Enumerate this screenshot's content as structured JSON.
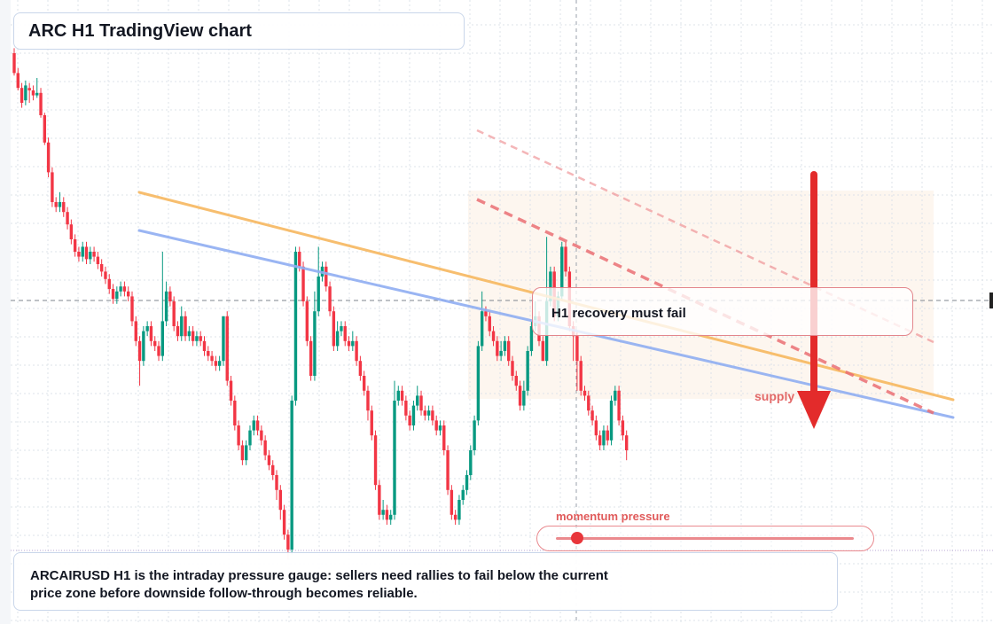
{
  "header": {
    "title": "ARC H1 TradingView chart"
  },
  "callout": {
    "text": "H1 recovery must fail"
  },
  "supply_label": "supply",
  "momentum": {
    "label": "momentum pressure",
    "level": 0.07
  },
  "note": {
    "text": "ARCAIRUSD H1 is the intraday pressure gauge: sellers need rallies to fail below the current price zone before downside follow-through becomes reliable."
  },
  "colors": {
    "up": "#089981",
    "down": "#f23645",
    "ma_fast": "#f7b860",
    "ma_slow": "#90aef2",
    "trend": "#eb6f74",
    "arrow": "#e32b2b",
    "zone": "#fdf4ec",
    "grid": "#dde3ea"
  },
  "chart_data": {
    "type": "candlestick",
    "title": "ARC H1 TradingView chart",
    "timeframe": "H1",
    "grid": true,
    "candles": [
      [
        1.0,
        0.96,
        1.01,
        0.955
      ],
      [
        0.96,
        0.93,
        0.97,
        0.925
      ],
      [
        0.93,
        0.9,
        0.94,
        0.89
      ],
      [
        0.905,
        0.935,
        0.945,
        0.895
      ],
      [
        0.93,
        0.925,
        0.94,
        0.9
      ],
      [
        0.925,
        0.915,
        0.935,
        0.905
      ],
      [
        0.915,
        0.92,
        0.95,
        0.91
      ],
      [
        0.92,
        0.875,
        0.93,
        0.87
      ],
      [
        0.875,
        0.82,
        0.88,
        0.815
      ],
      [
        0.82,
        0.76,
        0.83,
        0.75
      ],
      [
        0.76,
        0.7,
        0.77,
        0.69
      ],
      [
        0.7,
        0.69,
        0.71,
        0.68
      ],
      [
        0.69,
        0.7,
        0.72,
        0.68
      ],
      [
        0.7,
        0.68,
        0.71,
        0.67
      ],
      [
        0.68,
        0.655,
        0.69,
        0.645
      ],
      [
        0.655,
        0.625,
        0.665,
        0.615
      ],
      [
        0.625,
        0.6,
        0.635,
        0.59
      ],
      [
        0.6,
        0.59,
        0.61,
        0.58
      ],
      [
        0.59,
        0.61,
        0.62,
        0.58
      ],
      [
        0.61,
        0.585,
        0.62,
        0.575
      ],
      [
        0.585,
        0.6,
        0.61,
        0.575
      ],
      [
        0.6,
        0.59,
        0.61,
        0.58
      ],
      [
        0.59,
        0.575,
        0.6,
        0.565
      ],
      [
        0.575,
        0.56,
        0.585,
        0.55
      ],
      [
        0.56,
        0.545,
        0.57,
        0.535
      ],
      [
        0.545,
        0.525,
        0.555,
        0.515
      ],
      [
        0.525,
        0.505,
        0.535,
        0.495
      ],
      [
        0.505,
        0.52,
        0.53,
        0.495
      ],
      [
        0.52,
        0.53,
        0.54,
        0.51
      ],
      [
        0.53,
        0.52,
        0.54,
        0.51
      ],
      [
        0.52,
        0.51,
        0.53,
        0.5
      ],
      [
        0.51,
        0.46,
        0.52,
        0.45
      ],
      [
        0.46,
        0.42,
        0.47,
        0.41
      ],
      [
        0.42,
        0.38,
        0.43,
        0.33
      ],
      [
        0.38,
        0.44,
        0.45,
        0.37
      ],
      [
        0.44,
        0.45,
        0.46,
        0.43
      ],
      [
        0.45,
        0.42,
        0.46,
        0.41
      ],
      [
        0.42,
        0.41,
        0.43,
        0.4
      ],
      [
        0.41,
        0.39,
        0.42,
        0.38
      ],
      [
        0.39,
        0.46,
        0.6,
        0.38
      ],
      [
        0.46,
        0.52,
        0.54,
        0.45
      ],
      [
        0.52,
        0.5,
        0.53,
        0.49
      ],
      [
        0.5,
        0.45,
        0.51,
        0.44
      ],
      [
        0.45,
        0.43,
        0.46,
        0.42
      ],
      [
        0.43,
        0.47,
        0.49,
        0.42
      ],
      [
        0.47,
        0.43,
        0.48,
        0.42
      ],
      [
        0.43,
        0.44,
        0.45,
        0.42
      ],
      [
        0.44,
        0.42,
        0.45,
        0.41
      ],
      [
        0.42,
        0.43,
        0.44,
        0.41
      ],
      [
        0.43,
        0.42,
        0.44,
        0.41
      ],
      [
        0.42,
        0.4,
        0.43,
        0.39
      ],
      [
        0.4,
        0.39,
        0.41,
        0.38
      ],
      [
        0.39,
        0.38,
        0.4,
        0.37
      ],
      [
        0.38,
        0.37,
        0.39,
        0.36
      ],
      [
        0.37,
        0.38,
        0.39,
        0.36
      ],
      [
        0.38,
        0.47,
        0.47,
        0.37
      ],
      [
        0.47,
        0.34,
        0.48,
        0.33
      ],
      [
        0.34,
        0.3,
        0.35,
        0.29
      ],
      [
        0.3,
        0.25,
        0.31,
        0.24
      ],
      [
        0.25,
        0.21,
        0.26,
        0.2
      ],
      [
        0.21,
        0.18,
        0.22,
        0.17
      ],
      [
        0.18,
        0.21,
        0.22,
        0.17
      ],
      [
        0.21,
        0.24,
        0.25,
        0.2
      ],
      [
        0.24,
        0.26,
        0.27,
        0.23
      ],
      [
        0.26,
        0.24,
        0.27,
        0.23
      ],
      [
        0.24,
        0.22,
        0.25,
        0.21
      ],
      [
        0.22,
        0.19,
        0.23,
        0.18
      ],
      [
        0.19,
        0.17,
        0.2,
        0.16
      ],
      [
        0.17,
        0.15,
        0.18,
        0.14
      ],
      [
        0.15,
        0.12,
        0.16,
        0.1
      ],
      [
        0.12,
        0.08,
        0.13,
        0.06
      ],
      [
        0.08,
        0.03,
        0.09,
        0.02
      ],
      [
        0.03,
        0.0,
        0.04,
        -0.02
      ],
      [
        0.0,
        0.3,
        0.31,
        -0.01
      ],
      [
        0.3,
        0.6,
        0.61,
        0.29
      ],
      [
        0.6,
        0.57,
        0.61,
        0.56
      ],
      [
        0.57,
        0.5,
        0.58,
        0.49
      ],
      [
        0.5,
        0.42,
        0.51,
        0.41
      ],
      [
        0.42,
        0.35,
        0.43,
        0.34
      ],
      [
        0.35,
        0.48,
        0.52,
        0.34
      ],
      [
        0.48,
        0.55,
        0.61,
        0.47
      ],
      [
        0.55,
        0.57,
        0.58,
        0.54
      ],
      [
        0.57,
        0.53,
        0.58,
        0.52
      ],
      [
        0.53,
        0.48,
        0.54,
        0.47
      ],
      [
        0.48,
        0.41,
        0.49,
        0.4
      ],
      [
        0.41,
        0.44,
        0.46,
        0.4
      ],
      [
        0.44,
        0.45,
        0.46,
        0.43
      ],
      [
        0.45,
        0.42,
        0.46,
        0.41
      ],
      [
        0.42,
        0.41,
        0.43,
        0.4
      ],
      [
        0.41,
        0.42,
        0.44,
        0.4
      ],
      [
        0.42,
        0.38,
        0.43,
        0.37
      ],
      [
        0.38,
        0.35,
        0.39,
        0.34
      ],
      [
        0.35,
        0.32,
        0.36,
        0.31
      ],
      [
        0.32,
        0.28,
        0.33,
        0.26
      ],
      [
        0.28,
        0.23,
        0.29,
        0.22
      ],
      [
        0.23,
        0.13,
        0.24,
        0.12
      ],
      [
        0.13,
        0.07,
        0.14,
        0.06
      ],
      [
        0.07,
        0.08,
        0.1,
        0.06
      ],
      [
        0.08,
        0.06,
        0.09,
        0.05
      ],
      [
        0.06,
        0.07,
        0.08,
        0.05
      ],
      [
        0.07,
        0.3,
        0.34,
        0.06
      ],
      [
        0.3,
        0.32,
        0.33,
        0.29
      ],
      [
        0.32,
        0.3,
        0.33,
        0.29
      ],
      [
        0.3,
        0.27,
        0.31,
        0.26
      ],
      [
        0.27,
        0.25,
        0.28,
        0.24
      ],
      [
        0.25,
        0.29,
        0.3,
        0.24
      ],
      [
        0.29,
        0.31,
        0.33,
        0.28
      ],
      [
        0.31,
        0.28,
        0.32,
        0.27
      ],
      [
        0.28,
        0.27,
        0.29,
        0.26
      ],
      [
        0.27,
        0.28,
        0.29,
        0.26
      ],
      [
        0.28,
        0.26,
        0.29,
        0.25
      ],
      [
        0.26,
        0.24,
        0.27,
        0.23
      ],
      [
        0.24,
        0.25,
        0.26,
        0.23
      ],
      [
        0.25,
        0.2,
        0.26,
        0.19
      ],
      [
        0.2,
        0.12,
        0.21,
        0.11
      ],
      [
        0.12,
        0.07,
        0.13,
        0.06
      ],
      [
        0.07,
        0.06,
        0.08,
        0.05
      ],
      [
        0.06,
        0.1,
        0.11,
        0.05
      ],
      [
        0.1,
        0.12,
        0.13,
        0.09
      ],
      [
        0.12,
        0.15,
        0.16,
        0.11
      ],
      [
        0.15,
        0.2,
        0.21,
        0.14
      ],
      [
        0.2,
        0.26,
        0.27,
        0.19
      ],
      [
        0.26,
        0.41,
        0.42,
        0.25
      ],
      [
        0.41,
        0.48,
        0.52,
        0.4
      ],
      [
        0.48,
        0.47,
        0.49,
        0.46
      ],
      [
        0.47,
        0.44,
        0.48,
        0.43
      ],
      [
        0.44,
        0.42,
        0.45,
        0.41
      ],
      [
        0.42,
        0.39,
        0.43,
        0.38
      ],
      [
        0.39,
        0.4,
        0.42,
        0.38
      ],
      [
        0.4,
        0.42,
        0.43,
        0.39
      ],
      [
        0.42,
        0.38,
        0.43,
        0.37
      ],
      [
        0.38,
        0.35,
        0.39,
        0.34
      ],
      [
        0.35,
        0.33,
        0.36,
        0.32
      ],
      [
        0.33,
        0.29,
        0.34,
        0.28
      ],
      [
        0.29,
        0.32,
        0.34,
        0.28
      ],
      [
        0.32,
        0.4,
        0.41,
        0.31
      ],
      [
        0.4,
        0.45,
        0.46,
        0.39
      ],
      [
        0.45,
        0.47,
        0.5,
        0.44
      ],
      [
        0.47,
        0.42,
        0.48,
        0.41
      ],
      [
        0.42,
        0.38,
        0.43,
        0.38
      ],
      [
        0.38,
        0.5,
        0.63,
        0.37
      ],
      [
        0.5,
        0.56,
        0.57,
        0.49
      ],
      [
        0.56,
        0.47,
        0.57,
        0.46
      ],
      [
        0.47,
        0.51,
        0.52,
        0.46
      ],
      [
        0.51,
        0.61,
        0.62,
        0.5
      ],
      [
        0.61,
        0.56,
        0.62,
        0.55
      ],
      [
        0.56,
        0.45,
        0.57,
        0.44
      ],
      [
        0.45,
        0.43,
        0.46,
        0.38
      ],
      [
        0.43,
        0.38,
        0.44,
        0.32
      ],
      [
        0.38,
        0.32,
        0.39,
        0.31
      ],
      [
        0.32,
        0.31,
        0.33,
        0.3
      ],
      [
        0.31,
        0.28,
        0.32,
        0.27
      ],
      [
        0.28,
        0.26,
        0.29,
        0.25
      ],
      [
        0.26,
        0.23,
        0.27,
        0.22
      ],
      [
        0.23,
        0.21,
        0.24,
        0.2
      ],
      [
        0.21,
        0.24,
        0.25,
        0.2
      ],
      [
        0.24,
        0.22,
        0.25,
        0.21
      ],
      [
        0.22,
        0.3,
        0.31,
        0.21
      ],
      [
        0.3,
        0.32,
        0.33,
        0.29
      ],
      [
        0.32,
        0.26,
        0.33,
        0.25
      ],
      [
        0.26,
        0.23,
        0.27,
        0.22
      ],
      [
        0.23,
        0.2,
        0.24,
        0.18
      ]
    ]
  }
}
